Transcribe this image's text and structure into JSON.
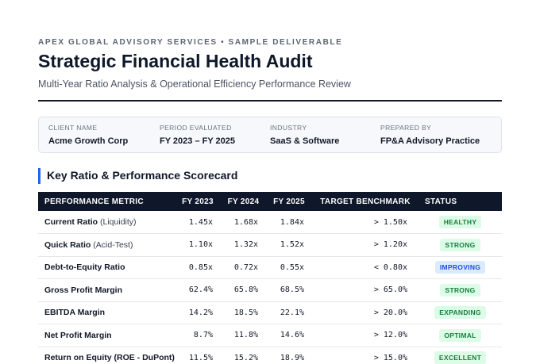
{
  "header": {
    "eyebrow": "APEX GLOBAL ADVISORY SERVICES • SAMPLE DELIVERABLE",
    "title": "Strategic Financial Health Audit",
    "subtitle": "Multi-Year Ratio Analysis & Operational Efficiency Performance Review"
  },
  "meta": {
    "client": {
      "label": "CLIENT NAME",
      "value": "Acme Growth Corp"
    },
    "period": {
      "label": "PERIOD EVALUATED",
      "value": "FY 2023 – FY 2025"
    },
    "industry": {
      "label": "INDUSTRY",
      "value": "SaaS & Software"
    },
    "prepared": {
      "label": "PREPARED BY",
      "value": "FP&A Advisory Practice"
    }
  },
  "section": {
    "title": "Key Ratio & Performance Scorecard"
  },
  "table": {
    "columns": [
      "PERFORMANCE METRIC",
      "FY 2023",
      "FY 2024",
      "FY 2025",
      "TARGET BENCHMARK",
      "STATUS"
    ],
    "rows": [
      {
        "metric": "Current Ratio",
        "qualifier": "(Liquidity)",
        "fy2023": "1.45x",
        "fy2024": "1.68x",
        "fy2025": "1.84x",
        "benchmark": "> 1.50x",
        "status": "HEALTHY",
        "status_color": "#15803d"
      },
      {
        "metric": "Quick Ratio",
        "qualifier": "(Acid-Test)",
        "fy2023": "1.10x",
        "fy2024": "1.32x",
        "fy2025": "1.52x",
        "benchmark": "> 1.20x",
        "status": "STRONG",
        "status_color": "#15803d"
      },
      {
        "metric": "Debt-to-Equity Ratio",
        "qualifier": "",
        "fy2023": "0.85x",
        "fy2024": "0.72x",
        "fy2025": "0.55x",
        "benchmark": "< 0.80x",
        "status": "IMPROVING",
        "status_color": "#1d4ed8"
      },
      {
        "metric": "Gross Profit Margin",
        "qualifier": "",
        "fy2023": "62.4%",
        "fy2024": "65.8%",
        "fy2025": "68.5%",
        "benchmark": "> 65.0%",
        "status": "STRONG",
        "status_color": "#15803d"
      },
      {
        "metric": "EBITDA Margin",
        "qualifier": "",
        "fy2023": "14.2%",
        "fy2024": "18.5%",
        "fy2025": "22.1%",
        "benchmark": "> 20.0%",
        "status": "EXPANDING",
        "status_color": "#15803d"
      },
      {
        "metric": "Net Profit Margin",
        "qualifier": "",
        "fy2023": "8.7%",
        "fy2024": "11.8%",
        "fy2025": "14.6%",
        "benchmark": "> 12.0%",
        "status": "OPTIMAL",
        "status_color": "#15803d"
      },
      {
        "metric": "Return on Equity (ROE - DuPont)",
        "qualifier": "",
        "fy2023": "11.5%",
        "fy2024": "15.2%",
        "fy2025": "18.9%",
        "benchmark": "> 15.0%",
        "status": "EXCELLENT",
        "status_color": "#15803d"
      }
    ]
  },
  "colors": {
    "header_bg": "#0f172a",
    "accent": "#2563eb",
    "status_green_bg": "#dcfce7",
    "status_blue_bg": "#dbeafe"
  }
}
